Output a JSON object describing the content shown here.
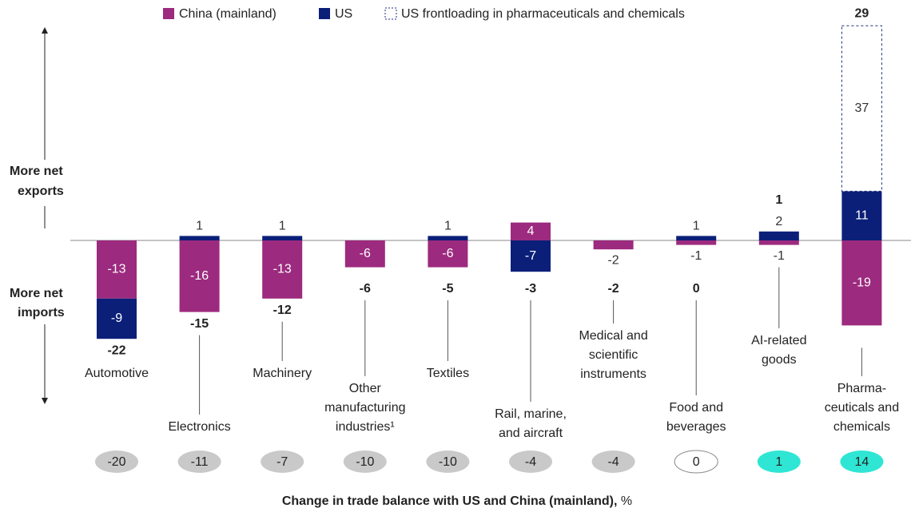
{
  "chart_data": {
    "type": "stacked-bar",
    "categories": [
      "Automotive",
      "Electronics",
      "Machinery",
      "Other\nmanufacturing\nindustries¹",
      "Textiles",
      "Rail, marine,\nand aircraft",
      "Medical and\nscientific\ninstruments",
      "Food and\nbeverages",
      "AI-related\ngoods",
      "Pharma-\nceuticals and\nchemicals"
    ],
    "series": [
      {
        "name": "China (mainland)",
        "color": "#9c2a7e",
        "values": [
          -13,
          -16,
          -13,
          -6,
          -6,
          4,
          -2,
          -1,
          -1,
          -19
        ]
      },
      {
        "name": "US",
        "color": "#0b1f78",
        "values": [
          -9,
          1,
          1,
          null,
          1,
          -7,
          null,
          1,
          2,
          11
        ]
      },
      {
        "name": "US frontloading in pharmaceuticals and chemicals",
        "color": "#ffffff",
        "dashed": true,
        "values": [
          null,
          null,
          null,
          null,
          null,
          null,
          null,
          null,
          null,
          37
        ]
      }
    ],
    "totals": [
      -22,
      -15,
      -12,
      -6,
      -5,
      -3,
      -2,
      0,
      1,
      29
    ],
    "change_pct": [
      -20,
      -11,
      -7,
      -10,
      -10,
      -4,
      -4,
      0,
      1,
      14
    ],
    "axis_title": "Change in trade balance with US and China (mainland),",
    "axis_unit": "%",
    "upper_label": [
      "More net",
      "exports"
    ],
    "lower_label": [
      "More net",
      "imports"
    ]
  }
}
